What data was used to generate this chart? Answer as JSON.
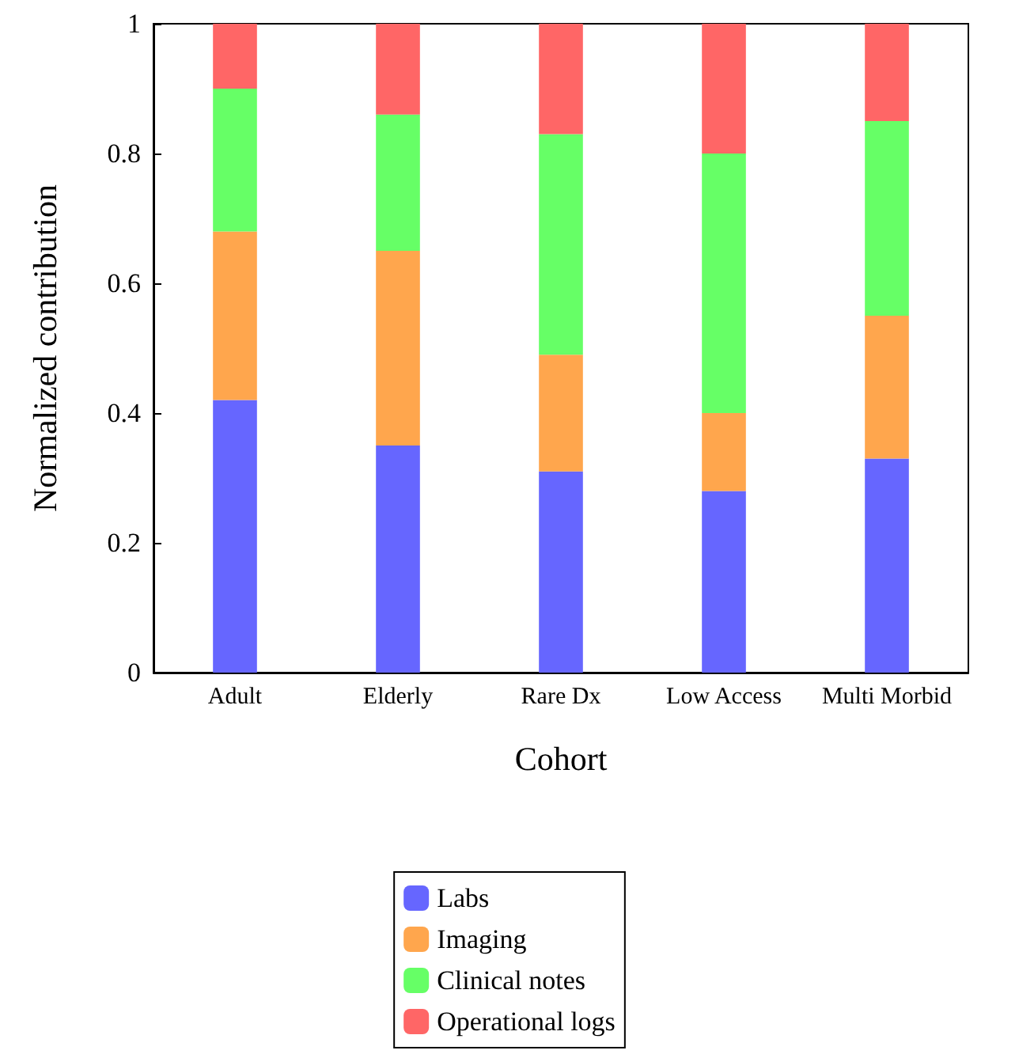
{
  "chart_data": {
    "type": "bar",
    "stacked": true,
    "xlabel": "Cohort",
    "ylabel": "Normalized contribution",
    "categories": [
      "Adult",
      "Elderly",
      "Rare Dx",
      "Low Access",
      "Multi Morbid"
    ],
    "series": [
      {
        "name": "Labs",
        "color": "#6666ff",
        "values": [
          0.42,
          0.35,
          0.31,
          0.28,
          0.33
        ]
      },
      {
        "name": "Imaging",
        "color": "#ffa64d",
        "values": [
          0.26,
          0.3,
          0.18,
          0.12,
          0.22
        ]
      },
      {
        "name": "Clinical notes",
        "color": "#66ff66",
        "values": [
          0.22,
          0.21,
          0.34,
          0.4,
          0.3
        ]
      },
      {
        "name": "Operational logs",
        "color": "#ff6666",
        "values": [
          0.1,
          0.14,
          0.17,
          0.2,
          0.15
        ]
      }
    ],
    "ylim": [
      0,
      1
    ],
    "yticks": [
      0,
      0.2,
      0.4,
      0.6,
      0.8,
      1
    ],
    "grid": false,
    "legend": "bottom"
  }
}
